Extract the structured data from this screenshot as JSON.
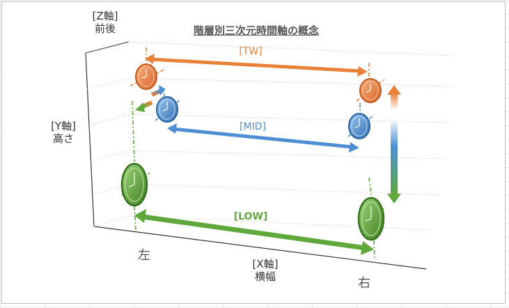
{
  "title": "階層別三次元時間軸の概念",
  "axes": {
    "z_label": "[Z軸]\n前後",
    "y_label": "[Y軸]\n高さ",
    "x_label": "[X軸]\n横幅"
  },
  "x_ends": {
    "left": "左",
    "right": "右"
  },
  "layers": [
    {
      "label": "[TW]",
      "color": "#e8823a"
    },
    {
      "label": "[MID]",
      "color": "#4e8fd4"
    },
    {
      "label": "[LOW]",
      "color": "#5fa83c"
    }
  ],
  "colors": {
    "grid": "#c8c8c8",
    "frame": "#bcbcbc",
    "text": "#555555"
  }
}
